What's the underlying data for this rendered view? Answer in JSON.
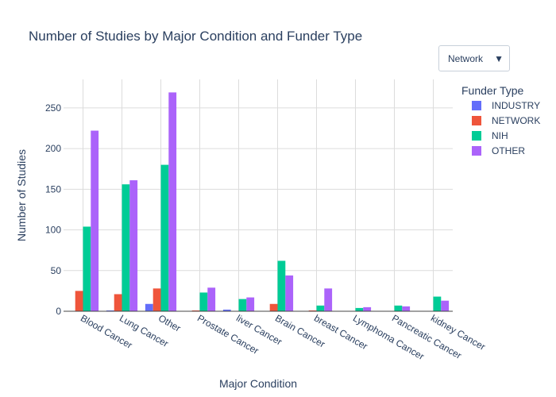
{
  "chart_data": {
    "type": "bar",
    "title": "Number of Studies by Major Condition and Funder Type",
    "xlabel": "Major Condition",
    "ylabel": "Number of Studies",
    "ylim": [
      0,
      285
    ],
    "yticks": [
      0,
      50,
      100,
      150,
      200,
      250
    ],
    "grid": true,
    "legend": {
      "title": "Funder Type",
      "position": "top-right"
    },
    "categories": [
      "Blood Cancer",
      "Lung Cancer",
      "Other",
      "Prostate Cancer",
      "liver Cancer",
      "Brain Cancer",
      "breast Cancer",
      "Lymphoma Cancer",
      "Pancreatic Cancer",
      "kidney Cancer"
    ],
    "series": [
      {
        "name": "INDUSTRY",
        "color": "#636efa",
        "values": [
          0,
          1,
          9,
          0,
          2,
          0,
          0,
          0,
          0,
          0
        ]
      },
      {
        "name": "NETWORK",
        "color": "#ef553b",
        "values": [
          25,
          21,
          28,
          1,
          0,
          9,
          1,
          0,
          0,
          0
        ]
      },
      {
        "name": "NIH",
        "color": "#00cc96",
        "values": [
          104,
          156,
          180,
          23,
          15,
          62,
          7,
          4,
          7,
          18
        ]
      },
      {
        "name": "OTHER",
        "color": "#ab63fa",
        "values": [
          222,
          161,
          269,
          29,
          17,
          44,
          28,
          5,
          6,
          13
        ]
      }
    ]
  },
  "dropdown": {
    "selected": "Network",
    "arrow_glyph": "▼"
  }
}
